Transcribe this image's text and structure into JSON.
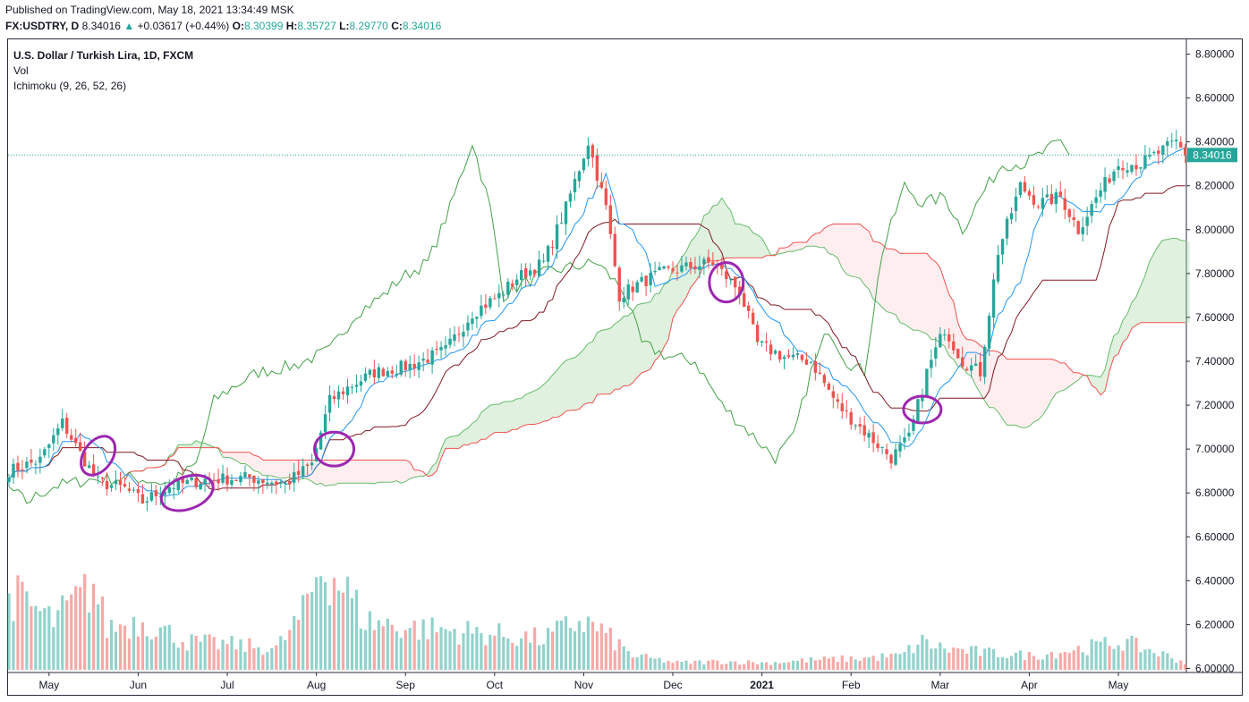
{
  "published": "Published on TradingView.com, May 18, 2021 13:34:49 MSK",
  "quote": {
    "symbol": "FX:USDTRY, D",
    "last": "8.34016",
    "arrow": "▲",
    "change": "+0.03617 (+0.44%)",
    "o_label": "O:",
    "o_value": "8.30399",
    "h_label": "H:",
    "h_value": "8.35727",
    "l_label": "L:",
    "l_value": "8.29770",
    "c_label": "C:",
    "c_value": "8.34016"
  },
  "legend": {
    "title": "U.S. Dollar / Turkish Lira, 1D, FXCM",
    "vol": "Vol",
    "ichimoku": "Ichimoku (9, 26, 52, 26)"
  },
  "colors": {
    "up": "#26a69a",
    "down": "#ef5350",
    "conversion": "#2196f3",
    "base": "#801922",
    "lagging": "#43a047",
    "leadA": "#66bb6a",
    "leadB": "#ef5350",
    "cloudBull": "#a5d6a7",
    "cloudBear": "#ffcdd2",
    "annotation": "#9c27b0",
    "lastPriceBox": "#26a69a"
  },
  "chart_data": {
    "type": "candlestick",
    "title": "U.S. Dollar / Turkish Lira, 1D, FXCM",
    "last_price": 8.34016,
    "last_price_label": "8.34016",
    "ylim": [
      6.0,
      8.8
    ],
    "y_ticks": [
      {
        "value": 8.8,
        "label": "8.80000"
      },
      {
        "value": 8.6,
        "label": "8.60000"
      },
      {
        "value": 8.4,
        "label": "8.40000"
      },
      {
        "value": 8.2,
        "label": "8.20000"
      },
      {
        "value": 8.0,
        "label": "8.00000"
      },
      {
        "value": 7.8,
        "label": "7.80000"
      },
      {
        "value": 7.6,
        "label": "7.60000"
      },
      {
        "value": 7.4,
        "label": "7.40000"
      },
      {
        "value": 7.2,
        "label": "7.20000"
      },
      {
        "value": 7.0,
        "label": "7.00000"
      },
      {
        "value": 6.8,
        "label": "6.80000"
      },
      {
        "value": 6.6,
        "label": "6.60000"
      },
      {
        "value": 6.4,
        "label": "6.40000"
      },
      {
        "value": 6.2,
        "label": "6.20000"
      },
      {
        "value": 6.0,
        "label": "6.00000"
      }
    ],
    "x_ticks": [
      {
        "bar": 9,
        "label": "May",
        "bold": false
      },
      {
        "bar": 29,
        "label": "Jun",
        "bold": false
      },
      {
        "bar": 49,
        "label": "Jul",
        "bold": false
      },
      {
        "bar": 69,
        "label": "Aug",
        "bold": false
      },
      {
        "bar": 89,
        "label": "Sep",
        "bold": false
      },
      {
        "bar": 109,
        "label": "Oct",
        "bold": false
      },
      {
        "bar": 129,
        "label": "Nov",
        "bold": false
      },
      {
        "bar": 149,
        "label": "Dec",
        "bold": false
      },
      {
        "bar": 169,
        "label": "2021",
        "bold": true
      },
      {
        "bar": 189,
        "label": "Feb",
        "bold": false
      },
      {
        "bar": 209,
        "label": "Mar",
        "bold": false
      },
      {
        "bar": 229,
        "label": "Apr",
        "bold": false
      },
      {
        "bar": 249,
        "label": "May",
        "bold": false
      }
    ],
    "bars_visible": 270,
    "close_anchors": [
      [
        0,
        6.9
      ],
      [
        7,
        6.95
      ],
      [
        12,
        7.12
      ],
      [
        16,
        6.98
      ],
      [
        20,
        6.85
      ],
      [
        26,
        6.82
      ],
      [
        30,
        6.76
      ],
      [
        36,
        6.83
      ],
      [
        44,
        6.86
      ],
      [
        54,
        6.87
      ],
      [
        62,
        6.84
      ],
      [
        68,
        6.93
      ],
      [
        72,
        7.22
      ],
      [
        76,
        7.28
      ],
      [
        82,
        7.35
      ],
      [
        90,
        7.38
      ],
      [
        98,
        7.45
      ],
      [
        104,
        7.62
      ],
      [
        110,
        7.7
      ],
      [
        114,
        7.78
      ],
      [
        120,
        7.85
      ],
      [
        125,
        8.1
      ],
      [
        130,
        8.4
      ],
      [
        134,
        8.1
      ],
      [
        137,
        7.7
      ],
      [
        141,
        7.75
      ],
      [
        146,
        7.8
      ],
      [
        150,
        7.82
      ],
      [
        158,
        7.85
      ],
      [
        164,
        7.72
      ],
      [
        168,
        7.48
      ],
      [
        174,
        7.42
      ],
      [
        180,
        7.4
      ],
      [
        186,
        7.2
      ],
      [
        192,
        7.08
      ],
      [
        198,
        6.96
      ],
      [
        202,
        7.05
      ],
      [
        206,
        7.35
      ],
      [
        210,
        7.55
      ],
      [
        214,
        7.4
      ],
      [
        218,
        7.35
      ],
      [
        222,
        7.9
      ],
      [
        227,
        8.2
      ],
      [
        231,
        8.12
      ],
      [
        236,
        8.15
      ],
      [
        240,
        8.0
      ],
      [
        245,
        8.18
      ],
      [
        249,
        8.3
      ],
      [
        254,
        8.3
      ],
      [
        258,
        8.35
      ],
      [
        262,
        8.4
      ],
      [
        264,
        8.34016
      ]
    ],
    "volume_anchors": [
      [
        0,
        0.55
      ],
      [
        10,
        0.35
      ],
      [
        19,
        0.6
      ],
      [
        22,
        0.3
      ],
      [
        30,
        0.35
      ],
      [
        40,
        0.2
      ],
      [
        50,
        0.18
      ],
      [
        60,
        0.15
      ],
      [
        66,
        0.4
      ],
      [
        70,
        0.75
      ],
      [
        75,
        0.6
      ],
      [
        80,
        0.35
      ],
      [
        90,
        0.3
      ],
      [
        100,
        0.28
      ],
      [
        110,
        0.25
      ],
      [
        120,
        0.22
      ],
      [
        128,
        0.35
      ],
      [
        132,
        0.3
      ],
      [
        140,
        0.1
      ],
      [
        150,
        0.05
      ],
      [
        160,
        0.06
      ],
      [
        170,
        0.05
      ],
      [
        180,
        0.07
      ],
      [
        190,
        0.08
      ],
      [
        200,
        0.1
      ],
      [
        205,
        0.2
      ],
      [
        210,
        0.15
      ],
      [
        220,
        0.12
      ],
      [
        230,
        0.1
      ],
      [
        240,
        0.15
      ],
      [
        250,
        0.2
      ],
      [
        260,
        0.1
      ],
      [
        264,
        0.05
      ]
    ],
    "volume_max_label_fraction": 0.75,
    "annotations": [
      {
        "bar": 20,
        "price": 6.97,
        "rx": 16,
        "ry": 24,
        "rot": 35
      },
      {
        "bar": 40,
        "price": 6.8,
        "rx": 30,
        "ry": 18,
        "rot": -20
      },
      {
        "bar": 73,
        "price": 7.0,
        "rx": 22,
        "ry": 19,
        "rot": 0
      },
      {
        "bar": 161,
        "price": 7.76,
        "rx": 19,
        "ry": 22,
        "rot": 0
      },
      {
        "bar": 205,
        "price": 7.18,
        "rx": 21,
        "ry": 15,
        "rot": 0
      }
    ]
  }
}
